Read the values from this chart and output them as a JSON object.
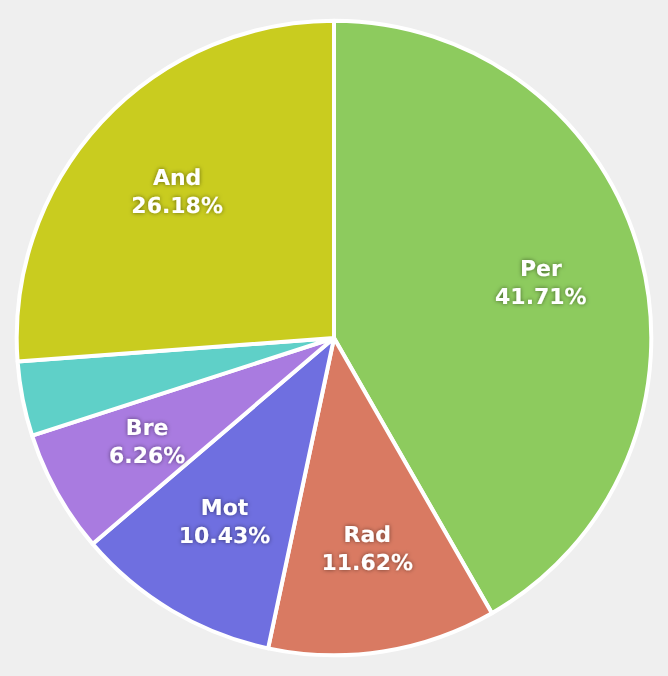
{
  "chart_data": {
    "type": "pie",
    "categories": [
      "Per",
      "Rad",
      "Mot",
      "Bre",
      null,
      "And"
    ],
    "values": [
      41.71,
      11.62,
      10.43,
      6.26,
      3.8,
      26.18
    ],
    "value_labels": [
      "41.71%",
      "11.62%",
      "10.43%",
      "6.26%",
      null,
      "26.18%"
    ],
    "colors": [
      "#8dcb5e",
      "#d97a62",
      "#6f6fe0",
      "#a97be0",
      "#5fd0c8",
      "#c9cc1f"
    ]
  }
}
